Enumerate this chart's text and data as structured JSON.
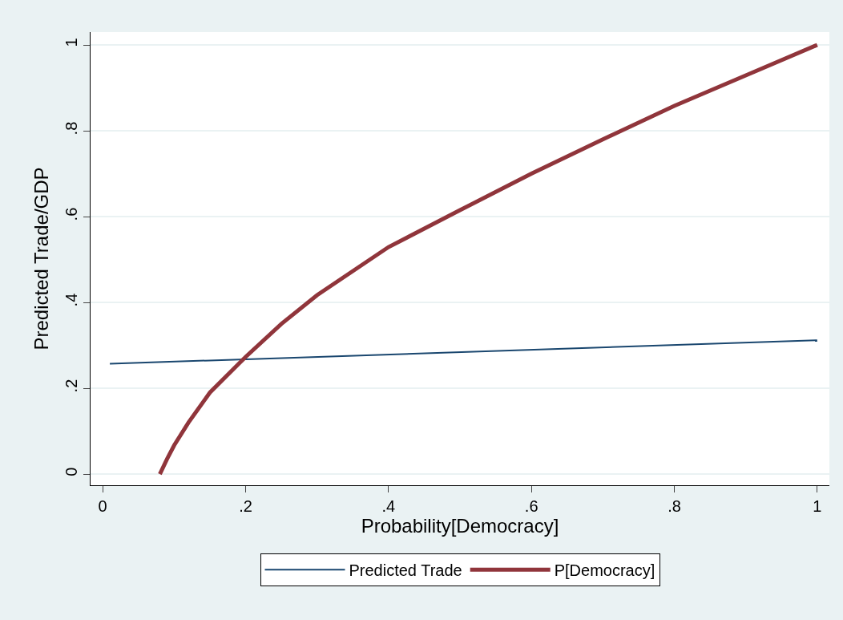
{
  "chart_data": {
    "type": "line",
    "xlabel": "Probability[Democracy]",
    "ylabel": "Predicted Trade/GDP",
    "xlim": [
      -0.017,
      1.017
    ],
    "ylim": [
      -0.026,
      1.03
    ],
    "xticks": [
      0,
      {
        "value": 0.2,
        "label": ".2"
      },
      {
        "value": 0.4,
        "label": ".4"
      },
      {
        "value": 0.6,
        "label": ".6"
      },
      {
        "value": 0.8,
        "label": ".8"
      },
      1
    ],
    "yticks": [
      0,
      {
        "value": 0.2,
        "label": ".2"
      },
      {
        "value": 0.4,
        "label": ".4"
      },
      {
        "value": 0.6,
        "label": ".6"
      },
      {
        "value": 0.8,
        "label": ".8"
      },
      1
    ],
    "grid": "y",
    "legend": "bottom",
    "marker": "none",
    "line_style": "solid",
    "series": [
      {
        "name": "Predicted Trade",
        "color": "#1a476f",
        "x": [
          0.01,
          1
        ],
        "values": [
          0.257,
          0.312
        ]
      },
      {
        "name": "P[Democracy]",
        "color": "#90353b",
        "x": [
          0.08,
          0.09,
          0.1,
          0.12,
          0.15,
          0.2,
          0.25,
          0.3,
          0.4,
          0.5,
          0.6,
          0.7,
          0.8,
          0.9,
          1
        ],
        "values": [
          0,
          0.035,
          0.067,
          0.12,
          0.19,
          0.273,
          0.35,
          0.417,
          0.529,
          0.615,
          0.7,
          0.78,
          0.858,
          0.929,
          1
        ]
      }
    ]
  }
}
